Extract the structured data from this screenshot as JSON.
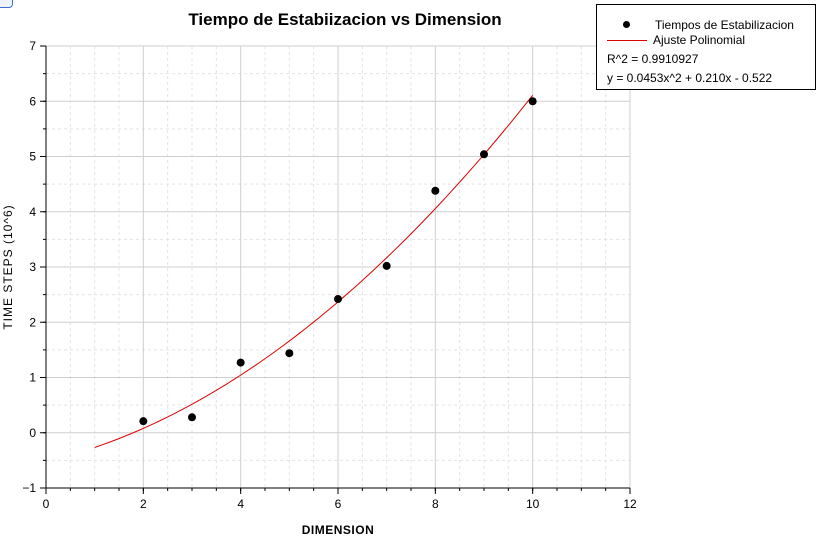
{
  "chart_data": {
    "type": "scatter",
    "title": "Tiempo de Estabiizacion vs Dimension",
    "xlabel": "DIMENSION",
    "ylabel": "TIME STEPS (10^6)",
    "xlim": [
      0,
      12
    ],
    "ylim": [
      -1,
      7
    ],
    "x_ticks": [
      "0",
      "2",
      "4",
      "6",
      "8",
      "10",
      "12"
    ],
    "y_ticks": [
      "−1",
      "0",
      "1",
      "2",
      "3",
      "4",
      "5",
      "6",
      "7"
    ],
    "grid": true,
    "legend_position": "top-right",
    "series": [
      {
        "name": "Tiempos de Estabilizacion",
        "kind": "scatter",
        "color": "#000000",
        "x": [
          2,
          3,
          4,
          5,
          6,
          7,
          8,
          9,
          10
        ],
        "y": [
          0.21,
          0.28,
          1.27,
          1.44,
          2.42,
          3.02,
          4.38,
          5.04,
          6.0
        ]
      },
      {
        "name": "Ajuste Polinomial",
        "kind": "line",
        "color": "#e00000",
        "fit": {
          "a": 0.0453,
          "b": 0.21,
          "c": -0.522,
          "x_range": [
            1,
            10
          ]
        }
      }
    ],
    "annotations": {
      "r2": "R^2 = 0.9910927",
      "equation": "y = 0.0453x^2 + 0.210x - 0.522"
    }
  }
}
